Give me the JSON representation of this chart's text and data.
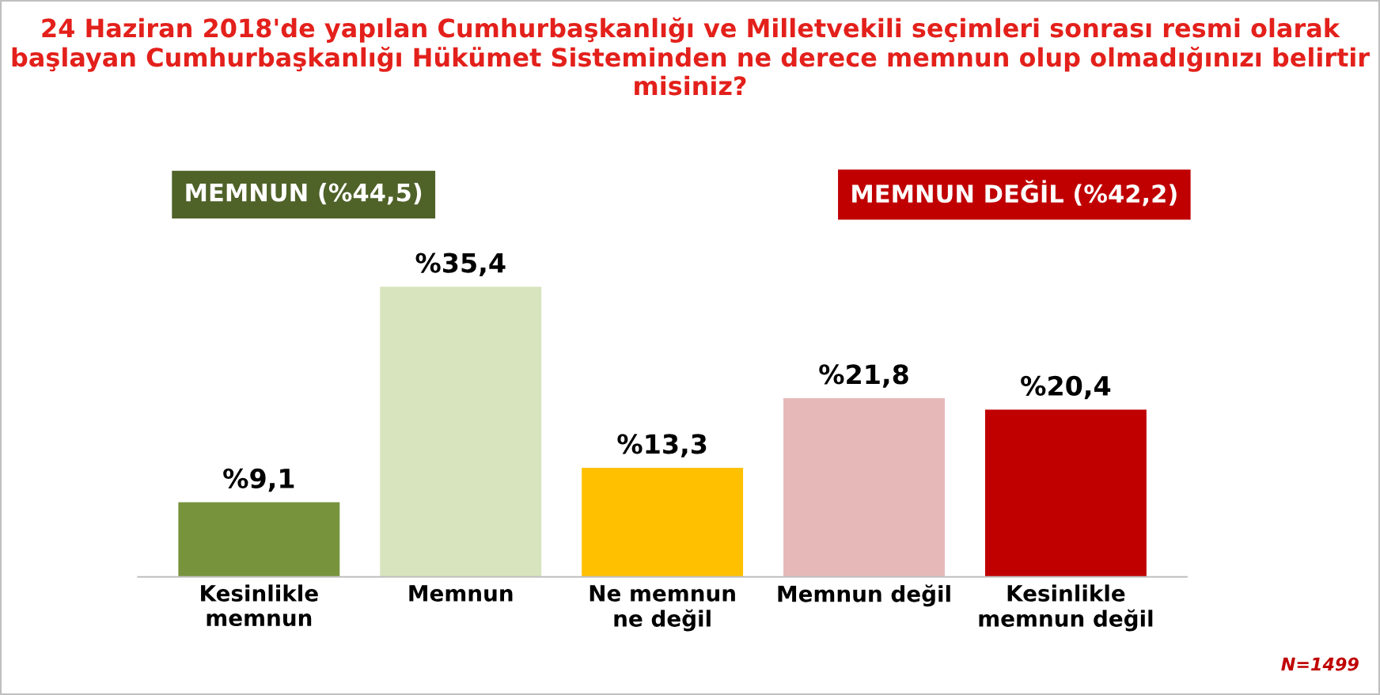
{
  "chart_data": {
    "type": "bar",
    "title": "24 Haziran 2018'de yapılan Cumhurbaşkanlığı ve Milletvekili seçimleri sonrası resmi olarak başlayan Cumhurbaşkanlığı Hükümet Sisteminden ne derece memnun olup olmadığınızı belirtir misiniz?",
    "categories": [
      "Kesinlikle\nmemnun",
      "Memnun",
      "Ne memnun\nne değil",
      "Memnun değil",
      "Kesinlikle\nmemnun değil"
    ],
    "values": [
      9.1,
      35.4,
      13.3,
      21.8,
      20.4
    ],
    "colors": [
      "#77933c",
      "#d7e4bd",
      "#ffc000",
      "#e6b9b8",
      "#c00000"
    ],
    "value_labels": [
      "%9,1",
      "%35,4",
      "%13,3",
      "%21,8",
      "%20,4"
    ],
    "annotations": [
      "MEMNUN (%44,5)",
      "MEMNUN DEĞİL (%42,2)",
      "N=1499"
    ],
    "grid": false,
    "legend": false
  }
}
